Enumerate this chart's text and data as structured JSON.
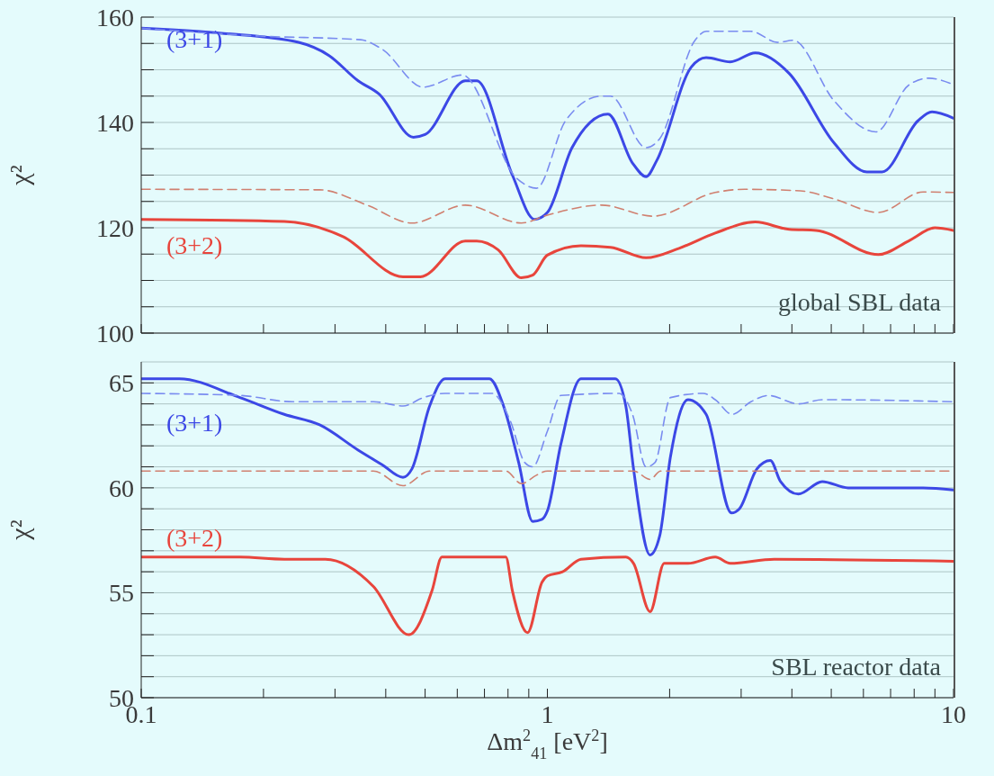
{
  "chart_data": [
    {
      "type": "line",
      "log": "x",
      "grid": "y",
      "tick_labels": "y",
      "ylabel": "χ²",
      "xlim": [
        0.1,
        10
      ],
      "ylim": [
        100,
        160
      ],
      "xticks": [
        0.1,
        {
          "value": 0.2,
          "label": null
        },
        {
          "value": 0.3,
          "label": null
        },
        {
          "value": 0.4,
          "label": null
        },
        {
          "value": 0.5,
          "label": null
        },
        {
          "value": 0.6,
          "label": null
        },
        {
          "value": 0.7,
          "label": null
        },
        {
          "value": 0.8,
          "label": null
        },
        {
          "value": 0.9,
          "label": null
        },
        1,
        {
          "value": 2,
          "label": null
        },
        {
          "value": 3,
          "label": null
        },
        {
          "value": 4,
          "label": null
        },
        {
          "value": 5,
          "label": null
        },
        {
          "value": 6,
          "label": null
        },
        {
          "value": 7,
          "label": null
        },
        {
          "value": 8,
          "label": null
        },
        {
          "value": 9,
          "label": null
        },
        10
      ],
      "yticks": [
        100,
        {
          "value": 105,
          "label": null
        },
        {
          "value": 110,
          "label": null
        },
        {
          "value": 115,
          "label": null
        },
        120,
        {
          "value": 125,
          "label": null
        },
        {
          "value": 130,
          "label": null
        },
        {
          "value": 135,
          "label": null
        },
        140,
        {
          "value": 145,
          "label": null
        },
        {
          "value": 150,
          "label": null
        },
        {
          "value": 155,
          "label": null
        },
        160
      ],
      "annotations": [
        "global SBL data"
      ],
      "series": [
        {
          "name": "(3+1)",
          "color": "#3c48e6",
          "line_style": "solid",
          "x": [
            0.1,
            0.16,
            0.244,
            0.29,
            0.342,
            0.385,
            0.468,
            0.5,
            0.628,
            0.67,
            0.82,
            0.93,
            1.0,
            1.15,
            1.41,
            1.62,
            1.75,
            1.86,
            2.26,
            2.46,
            2.82,
            3.25,
            3.94,
            5.07,
            6.12,
            6.67,
            8.17,
            8.85,
            10
          ],
          "values": [
            157.9,
            156.9,
            155.2,
            152.7,
            147.9,
            145.4,
            137.2,
            137.7,
            147.9,
            147.9,
            130,
            121.6,
            122.9,
            135.2,
            141.6,
            132.3,
            129.7,
            132.8,
            150.5,
            152.3,
            151.5,
            153.2,
            149.3,
            136.2,
            130.6,
            130.6,
            140.3,
            142,
            140.8
          ]
        },
        {
          "color": "#7a8cf0",
          "line_style": "dashed",
          "x": [
            0.1,
            0.196,
            0.347,
            0.392,
            0.495,
            0.617,
            0.84,
            0.94,
            1.11,
            1.36,
            1.43,
            1.75,
            1.89,
            2.31,
            2.46,
            3.17,
            3.69,
            4.03,
            5.07,
            6.44,
            7.76,
            8.7,
            10
          ],
          "values": [
            157.9,
            156.4,
            155.7,
            153.9,
            146.7,
            149,
            129.4,
            127.5,
            140.4,
            145,
            145,
            135.2,
            136.9,
            155.6,
            157.3,
            157.3,
            155.2,
            155.6,
            144.2,
            138.2,
            147.1,
            148.4,
            147.2
          ]
        },
        {
          "name": "(3+2)",
          "color": "#e8453c",
          "line_style": "solid",
          "x": [
            0.1,
            0.225,
            0.314,
            0.441,
            0.487,
            0.628,
            0.67,
            0.757,
            0.863,
            0.92,
            1.0,
            1.21,
            1.43,
            1.75,
            2.11,
            2.59,
            3.25,
            3.94,
            4.59,
            6.53,
            7.76,
            9.0,
            10
          ],
          "values": [
            121.6,
            121.2,
            118.3,
            110.7,
            110.7,
            117.5,
            117.5,
            115.8,
            110.5,
            111,
            114.8,
            116.6,
            116.3,
            114.3,
            116.1,
            119,
            121.1,
            119.7,
            119.5,
            114.9,
            117.5,
            120,
            119.5
          ]
        },
        {
          "color": "#d08070",
          "line_style": "dashed",
          "x": [
            0.1,
            0.275,
            0.36,
            0.464,
            0.628,
            0.863,
            1.0,
            1.36,
            1.82,
            2.59,
            3.06,
            4.2,
            5.07,
            6.53,
            8.42,
            10
          ],
          "values": [
            127.3,
            127.2,
            124.3,
            120.9,
            124.3,
            120.9,
            122.4,
            124.3,
            122.2,
            126.7,
            127.3,
            127,
            125.5,
            122.9,
            126.8,
            126.7
          ]
        }
      ]
    },
    {
      "type": "line",
      "log": "x",
      "grid": "y",
      "ylabel": "χ²",
      "xlabel": "Δm$^{2}$$_{41}$  [eV$^{2}$]",
      "xlim": [
        0.1,
        10
      ],
      "ylim": [
        50,
        66
      ],
      "xticks": [
        0.1,
        {
          "value": 0.2,
          "label": null
        },
        {
          "value": 0.3,
          "label": null
        },
        {
          "value": 0.4,
          "label": null
        },
        {
          "value": 0.5,
          "label": null
        },
        {
          "value": 0.6,
          "label": null
        },
        {
          "value": 0.7,
          "label": null
        },
        {
          "value": 0.8,
          "label": null
        },
        {
          "value": 0.9,
          "label": null
        },
        1,
        {
          "value": 2,
          "label": null
        },
        {
          "value": 3,
          "label": null
        },
        {
          "value": 4,
          "label": null
        },
        {
          "value": 5,
          "label": null
        },
        {
          "value": 6,
          "label": null
        },
        {
          "value": 7,
          "label": null
        },
        {
          "value": 8,
          "label": null
        },
        {
          "value": 9,
          "label": null
        },
        10
      ],
      "yticks": [
        50,
        {
          "value": 51,
          "label": null
        },
        {
          "value": 52,
          "label": null
        },
        {
          "value": 53,
          "label": null
        },
        {
          "value": 54,
          "label": null
        },
        55,
        {
          "value": 56,
          "label": null
        },
        {
          "value": 57,
          "label": null
        },
        {
          "value": 58,
          "label": null
        },
        {
          "value": 59,
          "label": null
        },
        60,
        {
          "value": 61,
          "label": null
        },
        {
          "value": 62,
          "label": null
        },
        {
          "value": 63,
          "label": null
        },
        {
          "value": 64,
          "label": null
        },
        65
      ],
      "annotations": [
        "SBL reactor data"
      ],
      "series": [
        {
          "name": "(3+1)",
          "color": "#3c48e6",
          "line_style": "solid",
          "x": [
            0.1,
            0.124,
            0.175,
            0.225,
            0.275,
            0.342,
            0.392,
            0.441,
            0.464,
            0.513,
            0.56,
            0.72,
            0.78,
            0.85,
            0.92,
            0.97,
            1.0,
            1.08,
            1.21,
            1.47,
            1.56,
            1.63,
            1.79,
            1.89,
            2.01,
            2.22,
            2.46,
            2.84,
            2.97,
            3.28,
            3.54,
            3.75,
            4.15,
            4.75,
            5.5,
            8.42,
            10
          ],
          "values": [
            65.2,
            65.2,
            64.3,
            63.5,
            63,
            61.8,
            61.1,
            60.5,
            60.9,
            63.9,
            65.2,
            65.2,
            63.9,
            61.2,
            58.4,
            58.5,
            58.9,
            62.1,
            65.2,
            65.2,
            63.9,
            60.9,
            56.8,
            57.7,
            61.5,
            64.2,
            63.5,
            58.8,
            59,
            60.9,
            61.3,
            60.3,
            59.7,
            60.3,
            60,
            60,
            59.9
          ]
        },
        {
          "color": "#7a8cf0",
          "line_style": "dashed",
          "x": [
            0.1,
            0.175,
            0.236,
            0.373,
            0.441,
            0.495,
            0.56,
            0.73,
            0.81,
            0.88,
            0.92,
            1.0,
            1.08,
            1.5,
            1.62,
            1.75,
            1.84,
            2.01,
            2.42,
            2.59,
            2.85,
            3.17,
            3.5,
            4.15,
            4.75,
            10
          ],
          "values": [
            64.5,
            64.4,
            64.1,
            64.1,
            63.9,
            64.3,
            64.5,
            64.5,
            63.2,
            61.2,
            61,
            62.7,
            64.4,
            64.5,
            63.5,
            61,
            61.2,
            64.3,
            64.5,
            64.2,
            63.5,
            64.1,
            64.4,
            64,
            64.2,
            64.1
          ]
        },
        {
          "name": "(3+2)",
          "color": "#e8453c",
          "line_style": "solid",
          "x": [
            0.1,
            0.175,
            0.225,
            0.284,
            0.373,
            0.456,
            0.52,
            0.55,
            0.79,
            0.82,
            0.894,
            0.97,
            1.0,
            1.09,
            1.21,
            1.56,
            1.63,
            1.79,
            1.94,
            2.22,
            2.59,
            2.82,
            3.62,
            10
          ],
          "values": [
            56.7,
            56.7,
            56.6,
            56.6,
            55.3,
            53,
            55.1,
            56.7,
            56.7,
            55.1,
            53.1,
            55.5,
            55.8,
            56,
            56.6,
            56.7,
            56.4,
            54.1,
            56.4,
            56.4,
            56.7,
            56.4,
            56.6,
            56.5
          ]
        },
        {
          "color": "#d08070",
          "line_style": "dashed",
          "x": [
            0.1,
            0.373,
            0.441,
            0.513,
            0.79,
            0.863,
            0.94,
            1.0,
            1.63,
            1.79,
            1.9,
            10
          ],
          "values": [
            60.8,
            60.8,
            60.1,
            60.8,
            60.8,
            60.2,
            60.6,
            60.8,
            60.8,
            60.4,
            60.8,
            60.8
          ]
        }
      ]
    }
  ]
}
